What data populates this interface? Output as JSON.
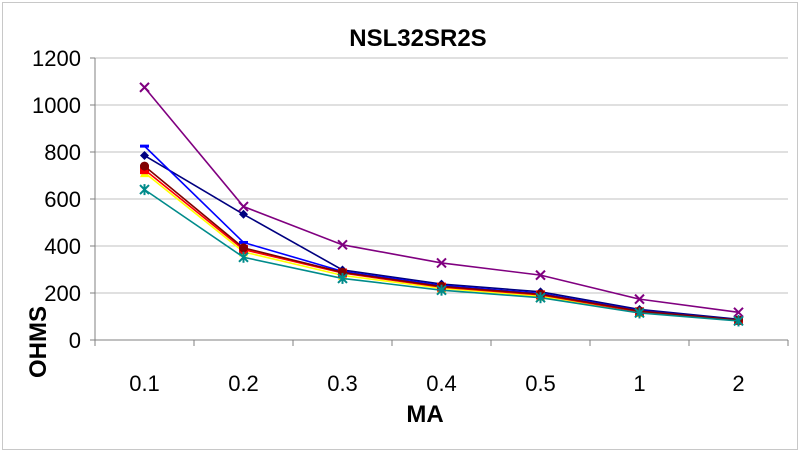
{
  "chart_data": {
    "type": "line",
    "title": "NSL32SR2S",
    "xlabel": "MA",
    "ylabel": "OHMS",
    "categories": [
      "0.1",
      "0.2",
      "0.3",
      "0.4",
      "0.5",
      "1",
      "2"
    ],
    "ylim": [
      0,
      1200
    ],
    "yticks": [
      0,
      200,
      400,
      600,
      800,
      1000,
      1200
    ],
    "grid": true,
    "series": [
      {
        "color": "#000080",
        "marker": "diamond",
        "values": [
          785,
          535,
          298,
          238,
          205,
          130,
          88
        ]
      },
      {
        "color": "#0000ff",
        "marker": "dash",
        "values": [
          825,
          415,
          292,
          232,
          198,
          125,
          85
        ]
      },
      {
        "color": "#ffff00",
        "marker": "triangle",
        "values": [
          712,
          375,
          275,
          220,
          186,
          117,
          83
        ]
      },
      {
        "color": "#ff0000",
        "marker": "square",
        "values": [
          725,
          385,
          285,
          225,
          192,
          120,
          83
        ]
      },
      {
        "color": "#800000",
        "marker": "circle",
        "values": [
          740,
          392,
          288,
          228,
          195,
          123,
          85
        ]
      },
      {
        "color": "#800080",
        "marker": "x",
        "values": [
          1075,
          568,
          405,
          328,
          276,
          174,
          118
        ]
      },
      {
        "color": "#008b8b",
        "marker": "asterisk",
        "values": [
          640,
          352,
          262,
          212,
          180,
          115,
          81
        ]
      }
    ]
  }
}
